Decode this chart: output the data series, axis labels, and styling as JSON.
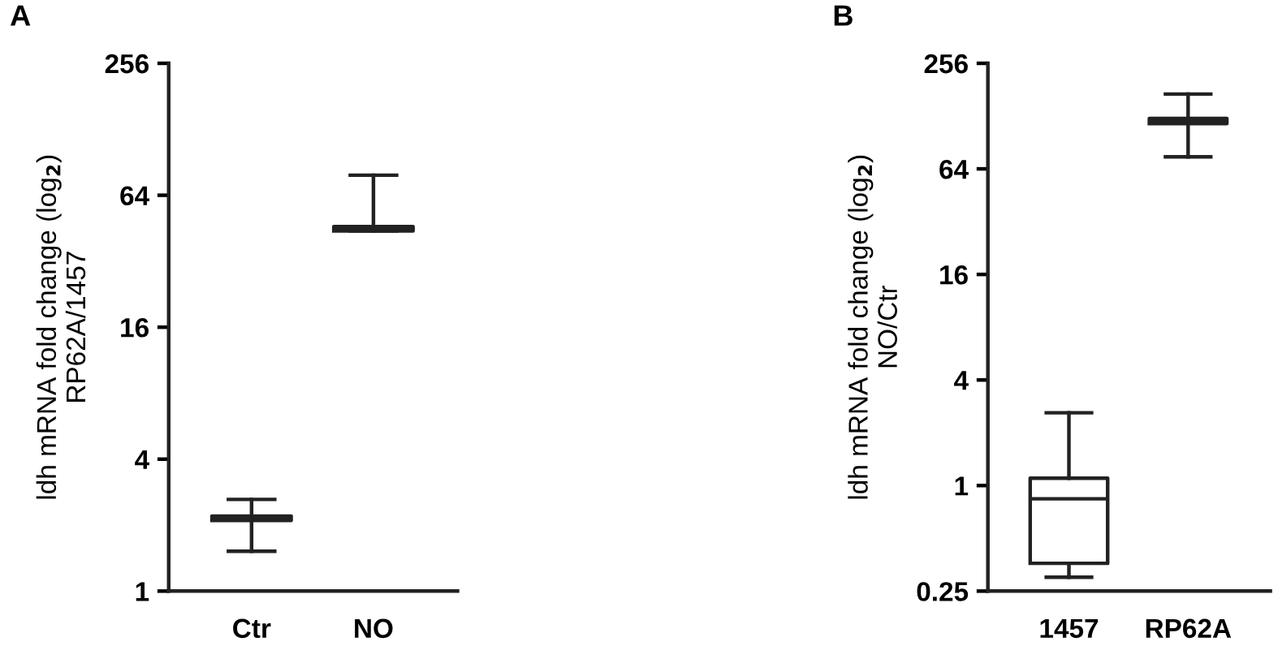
{
  "chart_data": [
    {
      "type": "box",
      "title": "A",
      "ylabel": "ldh mRNA fold change (log$_{2}$)\nRP62A/1457",
      "categories": [
        "Ctr",
        "NO"
      ],
      "boxes": [
        {
          "low": 1.52,
          "q1": 2.1,
          "median": 2.15,
          "q3": 2.2,
          "high": 2.62
        },
        {
          "low": 44,
          "q1": 44,
          "median": 45,
          "q3": 46,
          "high": 79
        }
      ],
      "color": "#222222",
      "log": "y",
      "ylim": [
        1,
        256
      ],
      "yticks": [
        1,
        4,
        16,
        64,
        256
      ],
      "grid": false
    },
    {
      "type": "box",
      "title": "B",
      "ylabel": "ldh mRNA fold change (log$_{2}$)\nNO/Ctr",
      "categories": [
        "1457",
        "RP62A"
      ],
      "boxes": [
        {
          "low": 0.3,
          "q1": 0.36,
          "median": 0.84,
          "q3": 1.1,
          "high": 2.6
        },
        {
          "low": 75,
          "q1": 116,
          "median": 120,
          "q3": 124,
          "high": 171
        }
      ],
      "color": "#222222",
      "log": "y",
      "ylim": [
        0.25,
        256
      ],
      "yticks": [
        0.25,
        1,
        4,
        16,
        64,
        256
      ],
      "grid": false
    }
  ]
}
